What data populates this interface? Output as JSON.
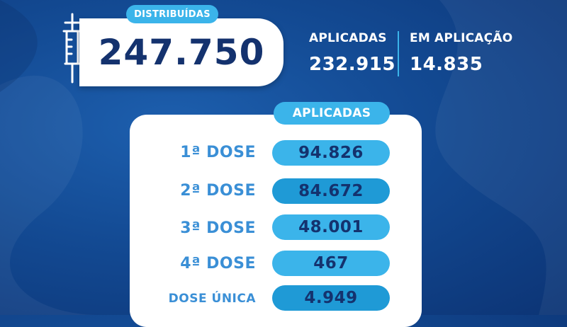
{
  "distribuidas": {
    "label": "DISTRIBUÍDAS",
    "value": "247.750"
  },
  "aplicadas_summary": {
    "label": "APLICADAS",
    "value": "232.915"
  },
  "em_aplicacao": {
    "label": "EM APLICAÇÃO",
    "value": "14.835"
  },
  "table": {
    "title": "APLICADAS",
    "rows": [
      {
        "label": "1ª DOSE",
        "value": "94.826"
      },
      {
        "label": "2ª DOSE",
        "value": "84.672"
      },
      {
        "label": "3ª DOSE",
        "value": "48.001"
      },
      {
        "label": "4ª DOSE",
        "value": "467"
      },
      {
        "label": "DOSE ÚNICA",
        "value": "4.949"
      }
    ]
  },
  "colors": {
    "background": "#134a93",
    "accent": "#3bb4ea",
    "pill_light": "#3bb4ea",
    "pill_dark": "#1f9ad6",
    "value_text": "#14326e",
    "label_text": "#3a8fd6"
  },
  "icons": {
    "syringe": "syringe-icon"
  }
}
